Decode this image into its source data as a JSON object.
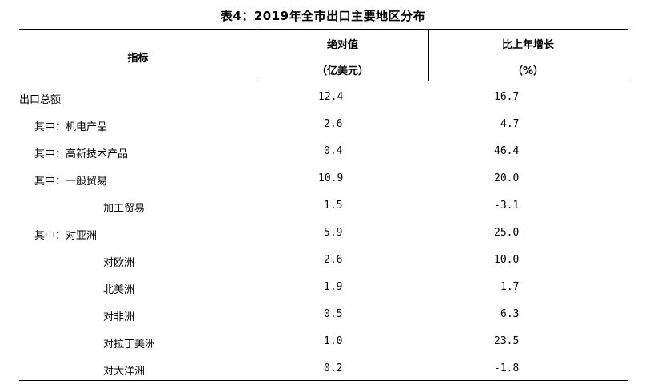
{
  "title": "表4：2019年全市出口主要地区分布",
  "headers": {
    "indicator": "指标",
    "absolute_line1": "绝对值",
    "absolute_line2": "（亿美元）",
    "growth_line1": "比上年增长",
    "growth_line2": "（%）"
  },
  "rows": [
    {
      "label": "出口总额",
      "value": "12.4",
      "growth": "16.7"
    },
    {
      "label": "其中：机电产品",
      "value": "2.6",
      "growth": "4.7"
    },
    {
      "label": "其中：高新技术产品",
      "value": "0.4",
      "growth": "46.4"
    },
    {
      "label": "其中：一般贸易",
      "value": "10.9",
      "growth": "20.0"
    },
    {
      "label": "加工贸易",
      "value": "1.5",
      "growth": "-3.1"
    },
    {
      "label": "其中：对亚洲",
      "value": "5.9",
      "growth": "25.0"
    },
    {
      "label": "对欧洲",
      "value": "2.6",
      "growth": "10.0"
    },
    {
      "label": "北美洲",
      "value": "1.9",
      "growth": "1.7"
    },
    {
      "label": "对非洲",
      "value": "0.5",
      "growth": "6.3"
    },
    {
      "label": "对拉丁美洲",
      "value": "1.0",
      "growth": "23.5"
    },
    {
      "label": "对大洋洲",
      "value": "0.2",
      "growth": "-1.8"
    }
  ]
}
